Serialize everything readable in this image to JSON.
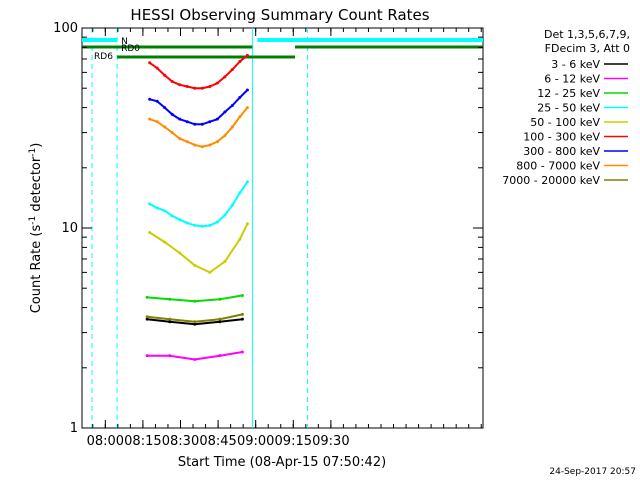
{
  "chart_data": {
    "type": "line",
    "title": "HESSI Observing Summary Count Rates",
    "xlabel": "Start Time (08-Apr-15 07:50:42)",
    "ylabel_main": "Count Rate (s",
    "ylabel_sup1": "-1",
    "ylabel_mid": " detector",
    "ylabel_sup2": "-1",
    "ylabel_end": ")",
    "yscale": "log",
    "ylim": [
      1,
      100
    ],
    "xlim_minutes": [
      0,
      160
    ],
    "y_ticks": [
      {
        "value": 1,
        "label": "1"
      },
      {
        "value": 10,
        "label": "10"
      },
      {
        "value": 100,
        "label": "100"
      }
    ],
    "x_ticks": [
      {
        "value": 9.3,
        "label": "08:00"
      },
      {
        "value": 24.3,
        "label": "08:15"
      },
      {
        "value": 39.3,
        "label": "08:30"
      },
      {
        "value": 54.3,
        "label": "08:45"
      },
      {
        "value": 69.3,
        "label": "09:00"
      },
      {
        "value": 84.3,
        "label": "09:15"
      },
      {
        "value": 99.3,
        "label": "09:30"
      }
    ],
    "legend_header": [
      "Det 1,3,5,6,7,9,",
      "FDecim 3, Att 0"
    ],
    "legend_placement": "right",
    "series": [
      {
        "name": "3 - 6 keV",
        "color": "#000000",
        "x": [
          26,
          35,
          45,
          55,
          64
        ],
        "y": [
          3.5,
          3.4,
          3.3,
          3.4,
          3.5
        ]
      },
      {
        "name": "6 - 12 keV",
        "color": "#ff00ff",
        "x": [
          26,
          35,
          45,
          55,
          64
        ],
        "y": [
          2.3,
          2.3,
          2.2,
          2.3,
          2.4
        ]
      },
      {
        "name": "12 - 25 keV",
        "color": "#00dd00",
        "x": [
          26,
          35,
          45,
          55,
          64
        ],
        "y": [
          4.5,
          4.4,
          4.3,
          4.4,
          4.6
        ]
      },
      {
        "name": "25 - 50 keV",
        "color": "#00ffff",
        "x": [
          27,
          30,
          33,
          36,
          39,
          42,
          45,
          48,
          51,
          54,
          57,
          60,
          63,
          66
        ],
        "y": [
          13.2,
          12.6,
          12.2,
          11.5,
          11.0,
          10.6,
          10.3,
          10.2,
          10.3,
          10.7,
          11.6,
          13.0,
          15.0,
          17.0
        ]
      },
      {
        "name": "50 - 100 keV",
        "color": "#cccc00",
        "x": [
          27,
          33,
          39,
          45,
          51,
          57,
          63,
          66
        ],
        "y": [
          9.5,
          8.5,
          7.5,
          6.5,
          6.0,
          6.8,
          8.8,
          10.5
        ]
      },
      {
        "name": "100 - 300 keV",
        "color": "#ff0000",
        "x": [
          27,
          30,
          33,
          36,
          39,
          42,
          45,
          48,
          51,
          54,
          57,
          60,
          63,
          66
        ],
        "y": [
          67,
          63,
          58,
          54,
          52,
          51,
          50,
          50,
          51,
          53,
          57,
          62,
          68,
          73
        ]
      },
      {
        "name": "300 - 800 keV",
        "color": "#0000ff",
        "x": [
          27,
          30,
          33,
          36,
          39,
          42,
          45,
          48,
          51,
          54,
          57,
          60,
          63,
          66
        ],
        "y": [
          44,
          43,
          40,
          37,
          35,
          34,
          33,
          33,
          34,
          35,
          38,
          41,
          45,
          49
        ]
      },
      {
        "name": "800 - 7000 keV",
        "color": "#ff8c00",
        "x": [
          27,
          30,
          33,
          36,
          39,
          42,
          45,
          48,
          51,
          54,
          57,
          60,
          63,
          66
        ],
        "y": [
          35,
          34,
          32,
          30,
          28,
          27,
          26,
          25.5,
          26,
          27,
          29,
          32,
          36,
          40
        ]
      },
      {
        "name": "7000 - 20000 keV",
        "color": "#808000",
        "x": [
          26,
          35,
          45,
          55,
          64
        ],
        "y": [
          3.6,
          3.5,
          3.4,
          3.5,
          3.7
        ]
      }
    ],
    "annotations": [
      {
        "text": "N",
        "color": "#00ffff",
        "x_min": 14
      },
      {
        "text": "RD0",
        "color": "#006400",
        "x_min": 14
      },
      {
        "text": "RD6",
        "color": "#006400",
        "x_min": 4
      }
    ],
    "footer_date": "24-Sep-2017 20:57"
  }
}
